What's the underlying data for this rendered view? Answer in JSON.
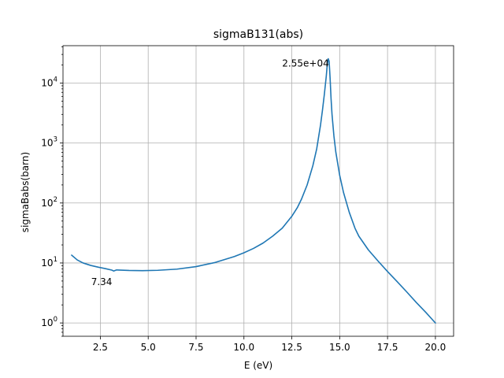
{
  "chart_data": {
    "type": "line",
    "title": "sigmaB131(abs)",
    "xlabel": "E (eV)",
    "ylabel": "sigmaBabs(barn)",
    "xscale": "linear",
    "yscale": "log",
    "xlim": [
      0.55,
      20.95
    ],
    "ylim": [
      0.6,
      42000
    ],
    "grid": true,
    "xticks": [
      2.5,
      5.0,
      7.5,
      10.0,
      12.5,
      15.0,
      17.5,
      20.0
    ],
    "xtick_labels": [
      "2.5",
      "5.0",
      "7.5",
      "10.0",
      "12.5",
      "15.0",
      "17.5",
      "20.0"
    ],
    "yticks": [
      1,
      10,
      100,
      1000,
      10000
    ],
    "ytick_labels": [
      {
        "base": "10",
        "exp": "0"
      },
      {
        "base": "10",
        "exp": "1"
      },
      {
        "base": "10",
        "exp": "2"
      },
      {
        "base": "10",
        "exp": "3"
      },
      {
        "base": "10",
        "exp": "4"
      }
    ],
    "color": "#1f77b4",
    "series": [
      {
        "x": [
          1.0,
          1.3,
          1.6,
          2.0,
          2.4,
          2.8,
          3.1,
          3.2,
          3.35,
          3.6,
          4.0,
          4.7,
          5.5,
          6.5,
          7.5,
          8.5,
          9.5,
          10.0,
          10.5,
          11.0,
          11.5,
          12.0,
          12.5,
          12.8,
          13.0,
          13.3,
          13.6,
          13.8,
          14.0,
          14.1,
          14.2,
          14.3,
          14.35,
          14.4,
          14.45,
          14.5,
          14.55,
          14.6,
          14.7,
          14.8,
          15.0,
          15.2,
          15.5,
          15.8,
          16.0,
          16.5,
          17.0,
          17.5,
          18.0,
          18.5,
          19.0,
          19.5,
          20.0
        ],
        "y": [
          13.5,
          11.2,
          10.0,
          9.1,
          8.5,
          8.0,
          7.6,
          7.34,
          7.65,
          7.6,
          7.5,
          7.45,
          7.55,
          7.9,
          8.7,
          10.2,
          12.8,
          14.8,
          17.5,
          21.5,
          28.0,
          38.0,
          60.0,
          85.0,
          115.0,
          200.0,
          420.0,
          800.0,
          2000.0,
          3500.0,
          6500.0,
          13000.0,
          20000.0,
          25500.0,
          23000.0,
          12000.0,
          5500.0,
          3000.0,
          1300.0,
          700.0,
          290.0,
          150.0,
          70.0,
          38.0,
          28.0,
          16.5,
          10.8,
          7.2,
          4.9,
          3.3,
          2.2,
          1.5,
          1.0
        ]
      }
    ],
    "annotations": [
      {
        "text": "2.55e+04",
        "x": 14.4,
        "y": 25500,
        "position": "left"
      },
      {
        "text": "7.34",
        "x": 3.2,
        "y": 7.34,
        "position": "below"
      }
    ]
  }
}
